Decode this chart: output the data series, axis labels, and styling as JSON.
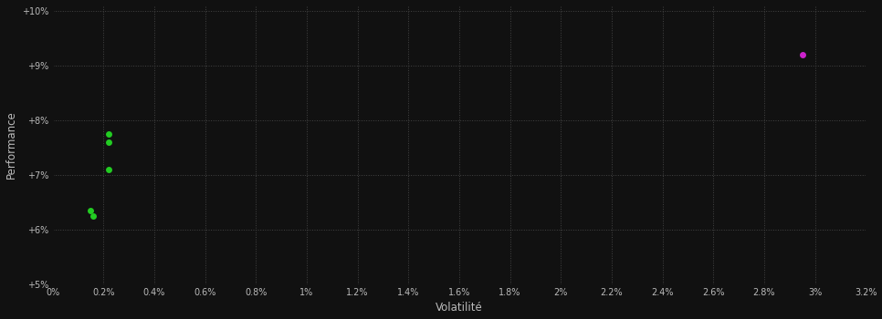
{
  "background_color": "#111111",
  "plot_bg_color": "#111111",
  "grid_color": "#444444",
  "text_color": "#bbbbbb",
  "xlabel": "Volatilité",
  "ylabel": "Performance",
  "xlim": [
    0.0,
    0.032
  ],
  "ylim": [
    0.05,
    0.101
  ],
  "xtick_vals": [
    0.0,
    0.002,
    0.004,
    0.006,
    0.008,
    0.01,
    0.012,
    0.014,
    0.016,
    0.018,
    0.02,
    0.022,
    0.024,
    0.026,
    0.028,
    0.03,
    0.032
  ],
  "ytick_vals": [
    0.05,
    0.06,
    0.07,
    0.08,
    0.09,
    0.1
  ],
  "green_points": [
    [
      0.0022,
      0.0775
    ],
    [
      0.0022,
      0.076
    ],
    [
      0.0022,
      0.071
    ],
    [
      0.0015,
      0.0635
    ],
    [
      0.0016,
      0.0625
    ]
  ],
  "magenta_points": [
    [
      0.0295,
      0.092
    ]
  ],
  "green_color": "#22cc22",
  "magenta_color": "#cc22cc",
  "marker_size": 5,
  "figsize": [
    9.66,
    3.5
  ],
  "dpi": 100
}
